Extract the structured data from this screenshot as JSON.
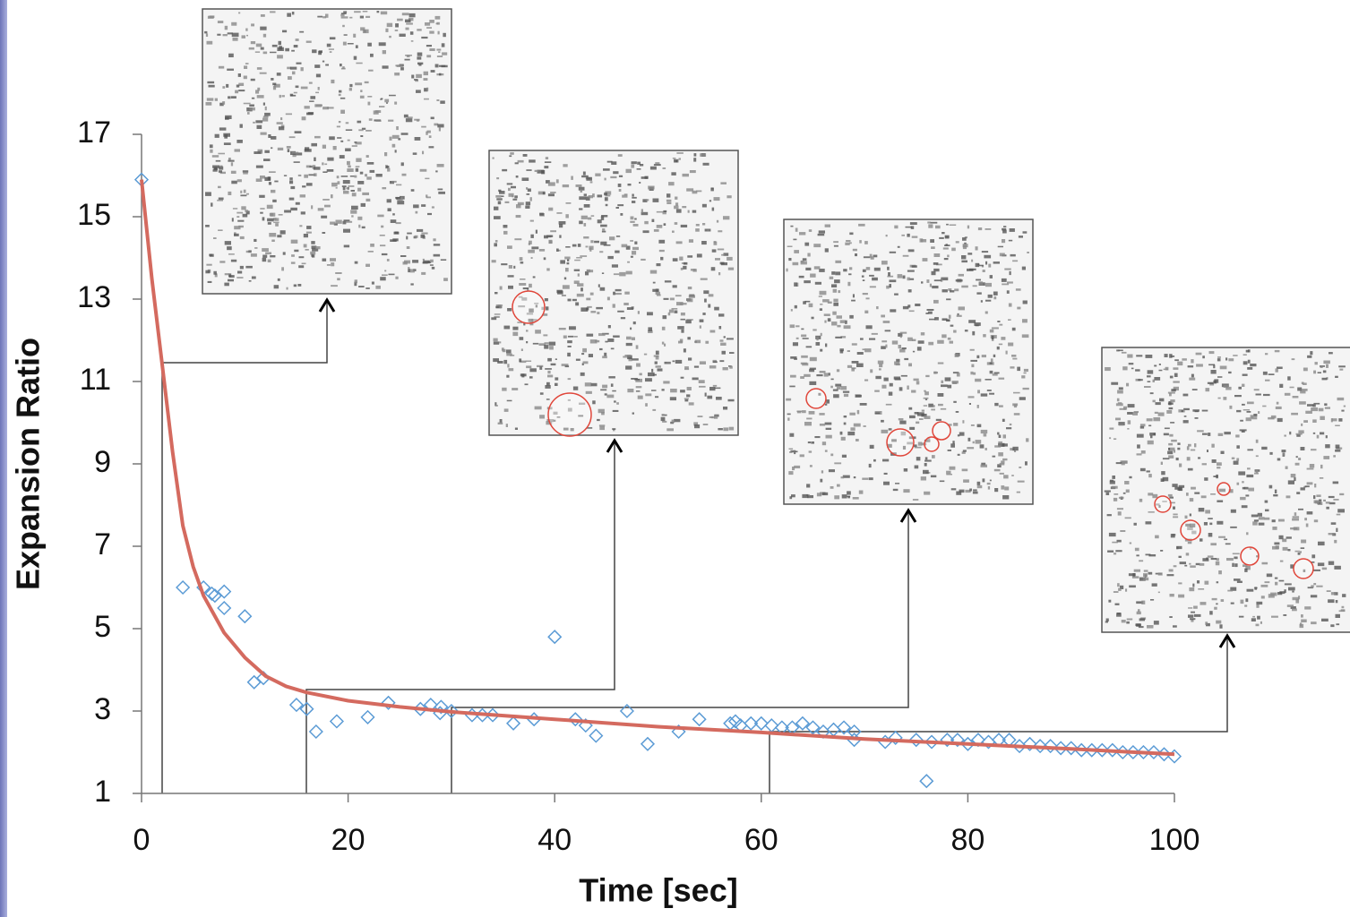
{
  "chart_data": {
    "type": "scatter",
    "x_label": "Time [sec]",
    "y_label": "Expansion Ratio",
    "xlim": [
      0,
      100
    ],
    "xticks": [
      0,
      20,
      40,
      60,
      80,
      100
    ],
    "ylim": [
      1,
      17
    ],
    "yticks": [
      1,
      3,
      5,
      7,
      9,
      11,
      13,
      15,
      17
    ],
    "series": [
      {
        "type": "scatter",
        "color": "#5b9bd5",
        "x": [
          0,
          4,
          6,
          6.8,
          7.1,
          8,
          8,
          10,
          10.9,
          11.8,
          15,
          16,
          16.9,
          18.9,
          21.9,
          23.9,
          27,
          28,
          28.9,
          29,
          30,
          32,
          33,
          34,
          36,
          38,
          40,
          42,
          43,
          44,
          47,
          49,
          52,
          54,
          57,
          57.5,
          58,
          59,
          60,
          61,
          62,
          63,
          64,
          65,
          66,
          67,
          68,
          69,
          69,
          72,
          73,
          75,
          76,
          76.5,
          78,
          79,
          80,
          81,
          82,
          83,
          84,
          85,
          86,
          87,
          88,
          89,
          90,
          91,
          92,
          93,
          94,
          95,
          96,
          97,
          98,
          99,
          100
        ],
        "values": [
          15.9,
          6.0,
          6.0,
          5.85,
          5.8,
          5.9,
          5.5,
          5.3,
          3.7,
          3.8,
          3.15,
          3.05,
          2.5,
          2.75,
          2.85,
          3.2,
          3.05,
          3.15,
          2.95,
          3.1,
          3.0,
          2.9,
          2.9,
          2.9,
          2.7,
          2.8,
          4.8,
          2.8,
          2.65,
          2.4,
          3.0,
          2.2,
          2.5,
          2.8,
          2.7,
          2.75,
          2.65,
          2.7,
          2.7,
          2.65,
          2.6,
          2.6,
          2.7,
          2.6,
          2.5,
          2.55,
          2.6,
          2.5,
          2.3,
          2.25,
          2.35,
          2.3,
          1.3,
          2.25,
          2.3,
          2.3,
          2.2,
          2.3,
          2.25,
          2.3,
          2.3,
          2.15,
          2.2,
          2.15,
          2.15,
          2.1,
          2.1,
          2.05,
          2.05,
          2.05,
          2.05,
          2.0,
          2.0,
          2.0,
          2.0,
          1.95,
          1.9
        ]
      },
      {
        "type": "line",
        "color": "#d46a5f",
        "x": [
          0,
          1,
          2,
          3,
          4,
          5,
          6,
          8,
          10,
          12,
          14,
          16,
          20,
          25,
          30,
          40,
          50,
          60,
          70,
          80,
          90,
          100
        ],
        "values": [
          15.9,
          13.5,
          11.4,
          9.3,
          7.5,
          6.5,
          5.8,
          4.9,
          4.3,
          3.85,
          3.6,
          3.45,
          3.25,
          3.1,
          2.98,
          2.8,
          2.62,
          2.48,
          2.32,
          2.2,
          2.08,
          1.95
        ]
      }
    ]
  }
}
